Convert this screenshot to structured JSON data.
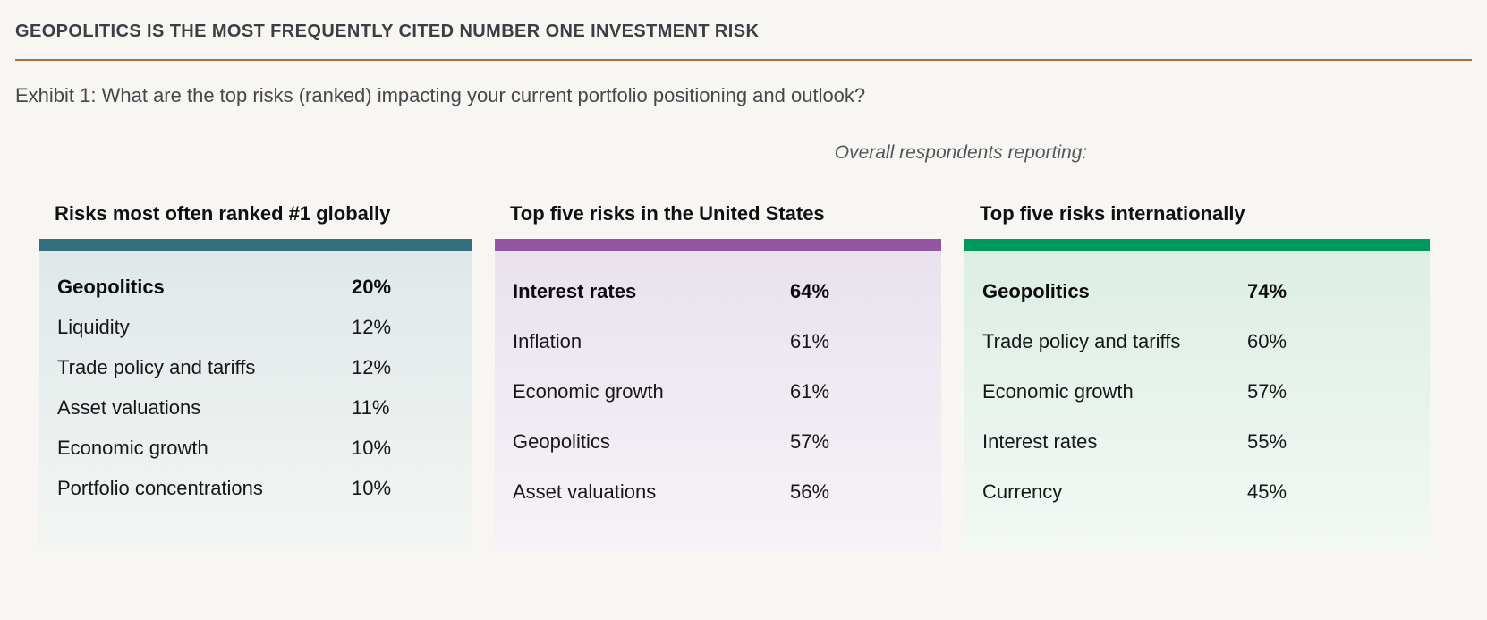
{
  "header": {
    "title": "GEOPOLITICS IS THE MOST FREQUENTLY CITED NUMBER ONE INVESTMENT RISK",
    "exhibit_caption": "Exhibit 1: What are the top risks (ranked) impacting your current portfolio positioning and outlook?",
    "note": "Overall respondents reporting:"
  },
  "colors": {
    "page_background": "#f7f6f3",
    "title_rule": "#a96f3d",
    "global_accent": "#326e7c",
    "us_accent": "#9455a3",
    "international_accent": "#00995d"
  },
  "chart_data": [
    {
      "type": "table",
      "title": "Risks most often ranked #1 globally",
      "rows": [
        {
          "label": "Geopolitics",
          "value": "20%"
        },
        {
          "label": "Liquidity",
          "value": "12%"
        },
        {
          "label": "Trade policy and tariffs",
          "value": "12%"
        },
        {
          "label": "Asset valuations",
          "value": "11%"
        },
        {
          "label": "Economic growth",
          "value": "10%"
        },
        {
          "label": "Portfolio concentrations",
          "value": "10%"
        }
      ]
    },
    {
      "type": "table",
      "title": "Top five risks in the United States",
      "rows": [
        {
          "label": "Interest rates",
          "value": "64%"
        },
        {
          "label": "Inflation",
          "value": "61%"
        },
        {
          "label": "Economic growth",
          "value": "61%"
        },
        {
          "label": "Geopolitics",
          "value": "57%"
        },
        {
          "label": "Asset valuations",
          "value": "56%"
        }
      ]
    },
    {
      "type": "table",
      "title": "Top five risks internationally",
      "rows": [
        {
          "label": "Geopolitics",
          "value": "74%"
        },
        {
          "label": "Trade policy and tariffs",
          "value": "60%"
        },
        {
          "label": "Economic growth",
          "value": "57%"
        },
        {
          "label": "Interest rates",
          "value": "55%"
        },
        {
          "label": "Currency",
          "value": "45%"
        }
      ]
    }
  ]
}
